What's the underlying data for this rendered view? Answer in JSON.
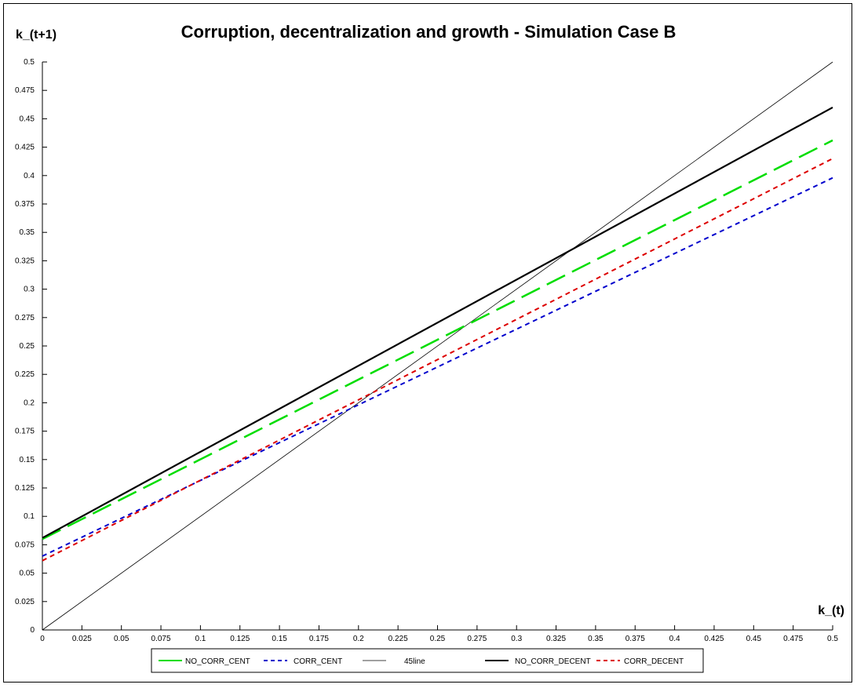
{
  "chart_data": {
    "type": "line",
    "title": "Corruption, decentralization and growth - Simulation Case B",
    "xlabel": "k_(t)",
    "ylabel": "k_(t+1)",
    "xlim": [
      0,
      0.5
    ],
    "ylim": [
      0,
      0.5
    ],
    "grid": false,
    "legend_position": "bottom",
    "x_ticks": [
      "0",
      "0.025",
      "0.05",
      "0.075",
      "0.1",
      "0.125",
      "0.15",
      "0.175",
      "0.2",
      "0.225",
      "0.25",
      "0.275",
      "0.3",
      "0.325",
      "0.35",
      "0.375",
      "0.4",
      "0.425",
      "0.45",
      "0.475",
      "0.5"
    ],
    "y_ticks": [
      "0",
      "0.025",
      "0.05",
      "0.075",
      "0.1",
      "0.125",
      "0.15",
      "0.175",
      "0.2",
      "0.225",
      "0.25",
      "0.275",
      "0.3",
      "0.325",
      "0.35",
      "0.375",
      "0.4",
      "0.425",
      "0.45",
      "0.475",
      "0.5"
    ],
    "series": [
      {
        "name": "NO_CORR_CENT",
        "color": "#00dd00",
        "dash": "long-dash",
        "width": 2.5,
        "x": [
          0,
          0.5
        ],
        "y": [
          0.08,
          0.431
        ]
      },
      {
        "name": "CORR_CENT",
        "color": "#0000cc",
        "dash": "short-dash",
        "width": 2,
        "x": [
          0,
          0.5
        ],
        "y": [
          0.065,
          0.398
        ]
      },
      {
        "name": "45line",
        "color": "#000000",
        "dash": "solid",
        "width": 0.8,
        "x": [
          0,
          0.5
        ],
        "y": [
          0,
          0.5
        ]
      },
      {
        "name": "NO_CORR_DECENT",
        "color": "#000000",
        "dash": "solid",
        "width": 2.2,
        "x": [
          0,
          0.5
        ],
        "y": [
          0.081,
          0.46
        ]
      },
      {
        "name": "CORR_DECENT",
        "color": "#dd0000",
        "dash": "short-dash",
        "width": 2,
        "x": [
          0,
          0.5
        ],
        "y": [
          0.061,
          0.415
        ]
      }
    ]
  }
}
